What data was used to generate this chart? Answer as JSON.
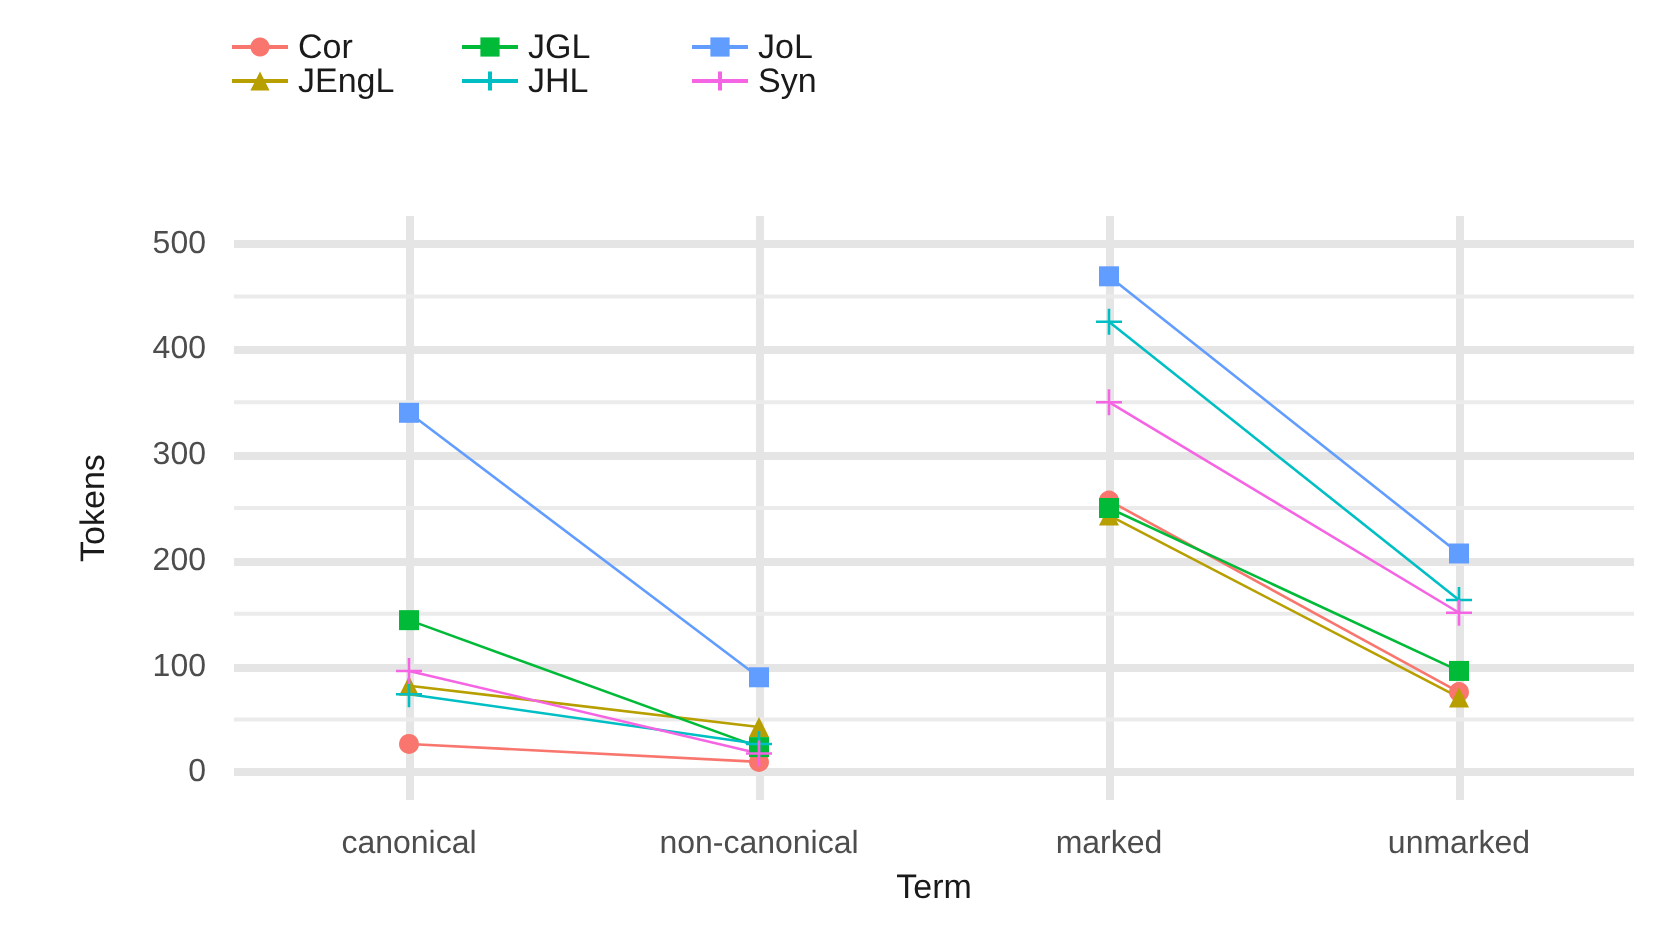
{
  "chart_data": {
    "type": "line",
    "xlabel": "Term",
    "ylabel": "Tokens",
    "categories": [
      "canonical",
      "non-canonical",
      "marked",
      "unmarked"
    ],
    "ylim": [
      -26,
      526
    ],
    "yticks": [
      0,
      100,
      200,
      300,
      400,
      500
    ],
    "grid": true,
    "legend": "top left",
    "series": [
      {
        "name": "Cor",
        "color": "#f8766d",
        "marker": "circle",
        "values": [
          27,
          10,
          null,
          null
        ]
      },
      {
        "color": "#f8766d",
        "marker": "circle",
        "values": [
          null,
          null,
          257,
          76
        ]
      },
      {
        "name": "JEngL",
        "color": "#b79f00",
        "marker": "triangle",
        "values": [
          82,
          43,
          null,
          null
        ]
      },
      {
        "color": "#b79f00",
        "marker": "triangle",
        "values": [
          null,
          null,
          243,
          71
        ]
      },
      {
        "name": "JGL",
        "color": "#00ba38",
        "marker": "square",
        "values": [
          144,
          24,
          null,
          null
        ]
      },
      {
        "color": "#00ba38",
        "marker": "square",
        "values": [
          null,
          null,
          250,
          96
        ]
      },
      {
        "name": "JHL",
        "color": "#00bfc4",
        "marker": "cross",
        "values": [
          74,
          27,
          null,
          null
        ]
      },
      {
        "color": "#00bfc4",
        "marker": "cross",
        "values": [
          null,
          null,
          426,
          163
        ]
      },
      {
        "name": "JoL",
        "color": "#619cff",
        "marker": "square",
        "values": [
          340,
          90,
          null,
          null
        ]
      },
      {
        "color": "#619cff",
        "marker": "square",
        "values": [
          null,
          null,
          469,
          207
        ]
      },
      {
        "name": "Syn",
        "color": "#f564e3",
        "marker": "cross",
        "values": [
          96,
          18,
          null,
          null
        ]
      },
      {
        "color": "#f564e3",
        "marker": "cross",
        "values": [
          null,
          null,
          350,
          151
        ]
      }
    ]
  }
}
